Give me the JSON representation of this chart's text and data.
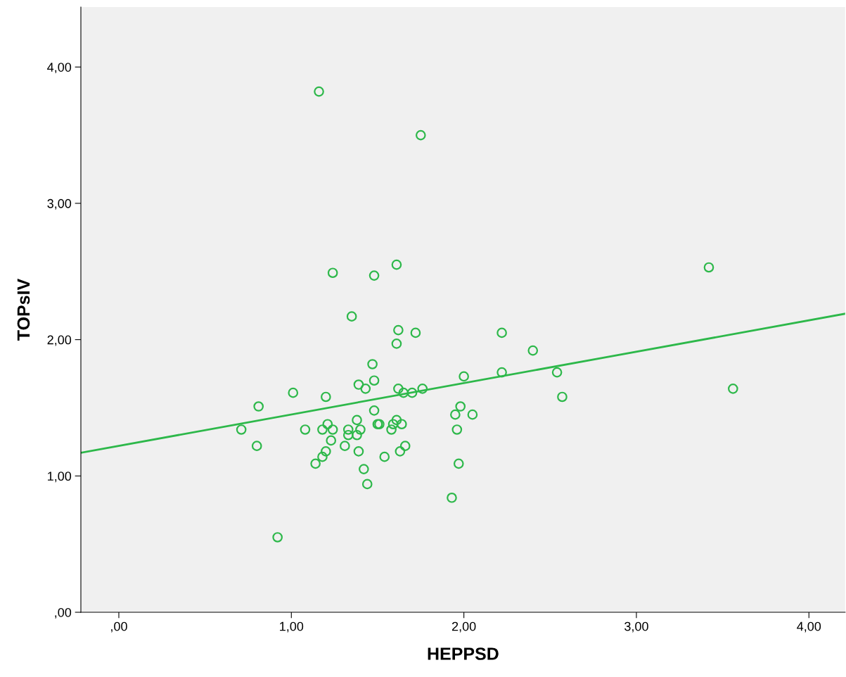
{
  "chart_data": {
    "type": "scatter",
    "xlabel": "HEPPSD",
    "ylabel": "TOPsIV",
    "xlim": [
      -0.22,
      4.21
    ],
    "ylim": [
      0,
      4.44
    ],
    "xticks": [
      {
        "value": 0,
        "label": ",00"
      },
      {
        "value": 1,
        "label": "1,00"
      },
      {
        "value": 2,
        "label": "2,00"
      },
      {
        "value": 3,
        "label": "3,00"
      },
      {
        "value": 4,
        "label": "4,00"
      }
    ],
    "yticks": [
      {
        "value": 0,
        "label": ",00"
      },
      {
        "value": 1,
        "label": "1,00"
      },
      {
        "value": 2,
        "label": "2,00"
      },
      {
        "value": 3,
        "label": "3,00"
      },
      {
        "value": 4,
        "label": "4,00"
      }
    ],
    "grid": false,
    "series": [
      {
        "marker": "circle",
        "color": "#2db84a",
        "x": [
          0.71,
          0.8,
          0.81,
          0.92,
          1.01,
          1.08,
          1.14,
          1.16,
          1.18,
          1.18,
          1.2,
          1.2,
          1.21,
          1.23,
          1.24,
          1.24,
          1.31,
          1.33,
          1.33,
          1.35,
          1.38,
          1.38,
          1.39,
          1.39,
          1.4,
          1.42,
          1.43,
          1.44,
          1.47,
          1.48,
          1.48,
          1.48,
          1.5,
          1.51,
          1.54,
          1.58,
          1.59,
          1.61,
          1.61,
          1.61,
          1.62,
          1.62,
          1.63,
          1.64,
          1.65,
          1.66,
          1.7,
          1.72,
          1.75,
          1.76,
          1.93,
          1.95,
          1.96,
          1.97,
          1.98,
          2.0,
          2.05,
          2.22,
          2.22,
          2.4,
          2.54,
          2.57,
          3.42,
          3.56
        ],
        "values": [
          1.34,
          1.22,
          1.51,
          0.55,
          1.61,
          1.34,
          1.09,
          3.82,
          1.14,
          1.34,
          1.58,
          1.18,
          1.38,
          1.26,
          2.49,
          1.34,
          1.22,
          1.34,
          1.3,
          2.17,
          1.41,
          1.3,
          1.67,
          1.18,
          1.34,
          1.05,
          1.64,
          0.94,
          1.82,
          2.47,
          1.7,
          1.48,
          1.38,
          1.38,
          1.14,
          1.34,
          1.38,
          2.55,
          1.97,
          1.41,
          2.07,
          1.64,
          1.18,
          1.38,
          1.61,
          1.22,
          1.61,
          2.05,
          3.5,
          1.64,
          0.84,
          1.45,
          1.34,
          1.09,
          1.51,
          1.73,
          1.45,
          2.05,
          1.76,
          1.92,
          1.76,
          1.58,
          2.53,
          1.64
        ]
      },
      {
        "type": "line",
        "color": "#2db84a",
        "x": [
          -0.22,
          4.21
        ],
        "values": [
          1.17,
          2.19
        ]
      }
    ]
  }
}
